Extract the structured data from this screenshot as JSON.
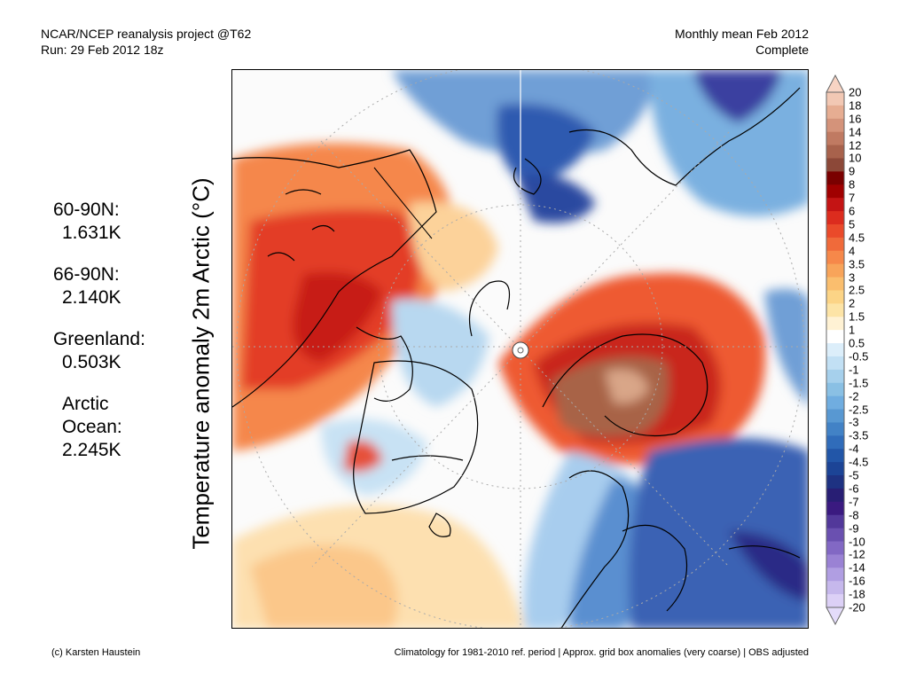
{
  "header": {
    "project": "NCAR/NCEP reanalysis project @T62",
    "run": "Run: 29 Feb 2012 18z",
    "period": "Monthly mean Feb 2012",
    "status": "Complete"
  },
  "stats": [
    {
      "region": "60-90N:",
      "value": "1.631K"
    },
    {
      "region": "66-90N:",
      "value": "2.140K"
    },
    {
      "region": "Greenland:",
      "value": "0.503K"
    },
    {
      "region": "Arctic Ocean:",
      "value": "2.245K"
    }
  ],
  "map": {
    "title": "Temperature anomaly 2m Arctic (°C)"
  },
  "colorbar": {
    "labels": [
      "20",
      "18",
      "16",
      "14",
      "12",
      "10",
      "9",
      "8",
      "7",
      "6",
      "5",
      "4.5",
      "4",
      "3.5",
      "3",
      "2.5",
      "2",
      "1.5",
      "1",
      "0.5",
      "-0.5",
      "-1",
      "-1.5",
      "-2",
      "-2.5",
      "-3",
      "-3.5",
      "-4",
      "-4.5",
      "-5",
      "-6",
      "-7",
      "-8",
      "-9",
      "-10",
      "-12",
      "-14",
      "-16",
      "-18",
      "-20"
    ],
    "colors": [
      "#f2c8b4",
      "#e6ad92",
      "#d4937a",
      "#c07a62",
      "#a8624c",
      "#8c4838",
      "#7a0000",
      "#a00000",
      "#c41414",
      "#dc2c1e",
      "#ea4a2a",
      "#f06a3a",
      "#f6884a",
      "#f8a45a",
      "#fabe6e",
      "#fcd486",
      "#fde4a6",
      "#fff2d4",
      "#ffffff",
      "#dceefa",
      "#c2e0f4",
      "#a6d0ec",
      "#8ac0e4",
      "#70ade0",
      "#5898d2",
      "#4282c6",
      "#306cba",
      "#2256a8",
      "#1c4496",
      "#1e3282",
      "#281e74",
      "#3a1a80",
      "#52389a",
      "#6a50b0",
      "#8268c4",
      "#9a82d4",
      "#b09ee2",
      "#c6b8ec",
      "#dcd0f6"
    ],
    "top_arrow": "#f8d4c4",
    "bottom_arrow": "#e4dcfa"
  },
  "footer": {
    "credit": "(c) Karsten Haustein",
    "note": "Climatology for 1981-2010 ref. period | Approx. grid box anomalies (very coarse) | OBS adjusted"
  }
}
